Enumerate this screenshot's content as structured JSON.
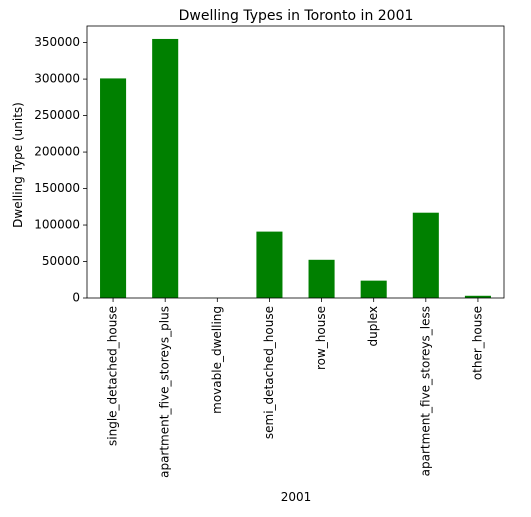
{
  "chart_data": {
    "type": "bar",
    "title": "Dwelling Types in Toronto in 2001",
    "xlabel": "2001",
    "ylabel": "Dwelling Type (units)",
    "categories": [
      "single_detached_house",
      "apartment_five_storeys_plus",
      "movable_dwelling",
      "semi_detached_house",
      "row_house",
      "duplex",
      "apartment_five_storeys_less",
      "other_house"
    ],
    "values": [
      300930,
      355015,
      75,
      90995,
      52355,
      23785,
      116900,
      3040
    ],
    "ylim": [
      0,
      372766
    ],
    "yticks": [
      0,
      50000,
      100000,
      150000,
      200000,
      250000,
      300000,
      350000
    ],
    "ytick_labels": [
      "0",
      "50000",
      "100000",
      "150000",
      "200000",
      "250000",
      "300000",
      "350000"
    ],
    "bar_color": "#008000",
    "grid": false,
    "legend": "none"
  }
}
